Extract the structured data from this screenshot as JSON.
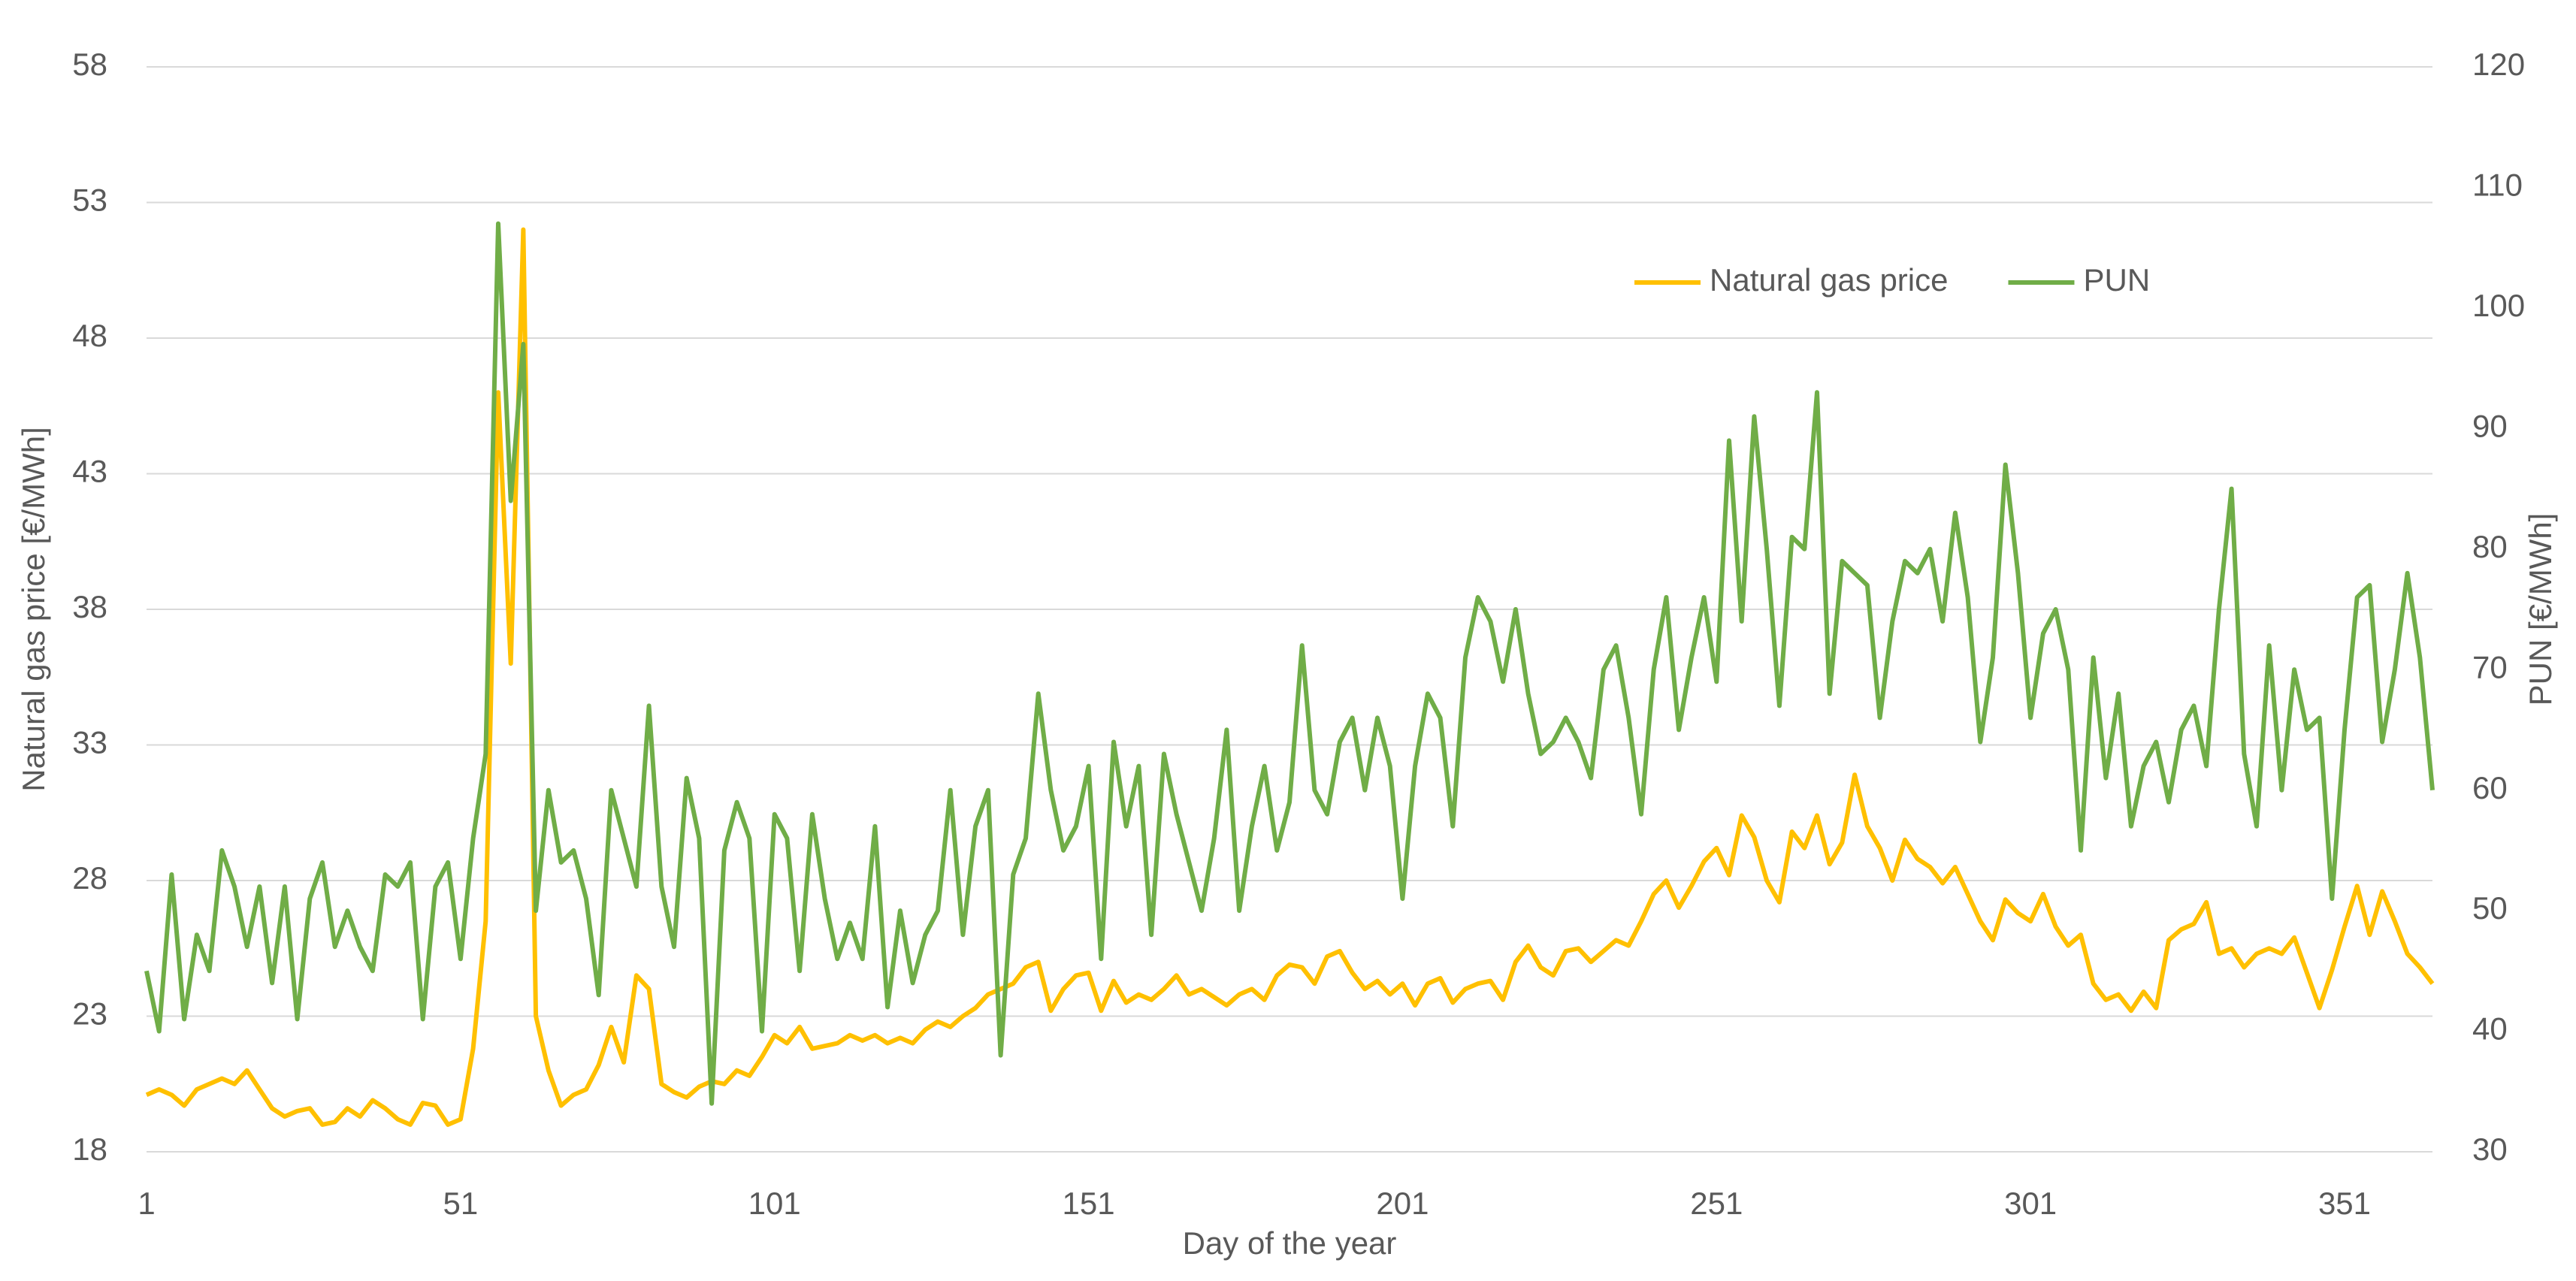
{
  "chart_data": {
    "type": "line",
    "x_label": "Day of the year",
    "y_label": "Natural gas price [€/MWh]",
    "y2_label": "PUN [€/MWh]",
    "xlim": [
      1,
      365
    ],
    "xticks": [
      1,
      51,
      101,
      151,
      201,
      251,
      301,
      351
    ],
    "ylim": [
      18,
      58
    ],
    "yticks": [
      18,
      23,
      28,
      33,
      38,
      43,
      48,
      53,
      58
    ],
    "y2lim": [
      30,
      120
    ],
    "y2ticks": [
      30,
      40,
      50,
      60,
      70,
      80,
      90,
      100,
      110,
      120
    ],
    "grid": true,
    "legend": "upper right",
    "x": [
      1,
      3,
      5,
      7,
      9,
      11,
      13,
      15,
      17,
      19,
      21,
      23,
      25,
      27,
      29,
      31,
      33,
      35,
      37,
      39,
      41,
      43,
      45,
      47,
      49,
      51,
      53,
      55,
      57,
      59,
      61,
      63,
      65,
      67,
      69,
      71,
      73,
      75,
      77,
      79,
      81,
      83,
      85,
      87,
      89,
      91,
      93,
      95,
      97,
      99,
      101,
      103,
      105,
      107,
      109,
      111,
      113,
      115,
      117,
      119,
      121,
      123,
      125,
      127,
      129,
      131,
      133,
      135,
      137,
      139,
      141,
      143,
      145,
      147,
      149,
      151,
      153,
      155,
      157,
      159,
      161,
      163,
      165,
      167,
      169,
      171,
      173,
      175,
      177,
      179,
      181,
      183,
      185,
      187,
      189,
      191,
      193,
      195,
      197,
      199,
      201,
      203,
      205,
      207,
      209,
      211,
      213,
      215,
      217,
      219,
      221,
      223,
      225,
      227,
      229,
      231,
      233,
      235,
      237,
      239,
      241,
      243,
      245,
      247,
      249,
      251,
      253,
      255,
      257,
      259,
      261,
      263,
      265,
      267,
      269,
      271,
      273,
      275,
      277,
      279,
      281,
      283,
      285,
      287,
      289,
      291,
      293,
      295,
      297,
      299,
      301,
      303,
      305,
      307,
      309,
      311,
      313,
      315,
      317,
      319,
      321,
      323,
      325,
      327,
      329,
      331,
      333,
      335,
      337,
      339,
      341,
      343,
      345,
      347,
      349,
      351,
      353,
      355,
      357,
      359,
      361,
      363,
      365
    ],
    "series": [
      {
        "name": "Natural gas price",
        "color": "#ffc000",
        "axis": "y",
        "values": [
          20.1,
          20.3,
          20.1,
          19.7,
          20.3,
          20.5,
          20.7,
          20.5,
          21.0,
          20.3,
          19.6,
          19.3,
          19.5,
          19.6,
          19.0,
          19.1,
          19.6,
          19.3,
          19.9,
          19.6,
          19.2,
          19.0,
          19.8,
          19.7,
          19.0,
          19.2,
          21.8,
          26.5,
          46,
          36,
          52,
          23,
          21,
          19.7,
          20.1,
          20.3,
          21.2,
          22.6,
          21.3,
          24.5,
          24.0,
          20.5,
          20.2,
          20.0,
          20.4,
          20.6,
          20.5,
          21.0,
          20.8,
          21.5,
          22.3,
          22.0,
          22.6,
          21.8,
          21.9,
          22.0,
          22.3,
          22.1,
          22.3,
          22.0,
          22.2,
          22.0,
          22.5,
          22.8,
          22.6,
          23.0,
          23.3,
          23.8,
          24.0,
          24.2,
          24.8,
          25.0,
          23.2,
          24.0,
          24.5,
          24.6,
          23.2,
          24.3,
          23.5,
          23.8,
          23.6,
          24.0,
          24.5,
          23.8,
          24.0,
          23.7,
          23.4,
          23.8,
          24.0,
          23.6,
          24.5,
          24.9,
          24.8,
          24.2,
          25.2,
          25.4,
          24.6,
          24.0,
          24.3,
          23.8,
          24.2,
          23.4,
          24.2,
          24.4,
          23.5,
          24.0,
          24.2,
          24.3,
          23.6,
          25.0,
          25.6,
          24.8,
          24.5,
          25.4,
          25.5,
          25.0,
          25.4,
          25.8,
          25.6,
          26.5,
          27.5,
          28.0,
          27.0,
          27.8,
          28.7,
          29.2,
          28.2,
          30.4,
          29.6,
          28.0,
          27.2,
          29.8,
          29.2,
          30.4,
          28.6,
          29.4,
          31.9,
          30.0,
          29.2,
          28.0,
          29.5,
          28.8,
          28.5,
          27.9,
          28.5,
          27.5,
          26.5,
          25.8,
          27.3,
          26.8,
          26.5,
          27.5,
          26.3,
          25.6,
          26.0,
          24.2,
          23.6,
          23.8,
          23.2,
          23.9,
          23.3,
          25.8,
          26.2,
          26.4,
          27.2,
          25.3,
          25.5,
          24.8,
          25.3,
          25.5,
          25.3,
          25.9,
          24.6,
          23.3,
          24.7,
          26.3,
          27.8,
          26.0,
          27.6,
          26.5,
          25.3,
          24.8,
          24.2
        ]
      },
      {
        "name": "PUN",
        "color": "#70ad47",
        "axis": "y2",
        "values": [
          45,
          40,
          53,
          41,
          48,
          45,
          55,
          52,
          47,
          52,
          44,
          52,
          41,
          51,
          54,
          47,
          50,
          47,
          45,
          53,
          52,
          54,
          41,
          52,
          54,
          46,
          56,
          63,
          107,
          84,
          97,
          50,
          60,
          54,
          55,
          51,
          43,
          60,
          56,
          52,
          67,
          52,
          47,
          61,
          56,
          34,
          55,
          59,
          56,
          40,
          58,
          56,
          45,
          58,
          51,
          46,
          49,
          46,
          57,
          42,
          50,
          44,
          48,
          50,
          60,
          48,
          57,
          60,
          38,
          53,
          56,
          68,
          60,
          55,
          57,
          62,
          46,
          64,
          57,
          62,
          48,
          63,
          58,
          54,
          50,
          56,
          65,
          50,
          57,
          62,
          55,
          59,
          72,
          60,
          58,
          64,
          66,
          60,
          66,
          62,
          51,
          62,
          68,
          66,
          57,
          71,
          76,
          74,
          69,
          75,
          68,
          63,
          64,
          66,
          64,
          61,
          70,
          72,
          66,
          58,
          70,
          76,
          65,
          71,
          76,
          69,
          89,
          74,
          91,
          80,
          67,
          81,
          80,
          93,
          68,
          79,
          78,
          77,
          66,
          74,
          79,
          78,
          80,
          74,
          83,
          76,
          64,
          71,
          87,
          78,
          66,
          73,
          75,
          70,
          55,
          71,
          61,
          68,
          57,
          62,
          64,
          59,
          65,
          67,
          62,
          75,
          85,
          63,
          57,
          72,
          60,
          70,
          65,
          66,
          51,
          65,
          76,
          77,
          64,
          70,
          78,
          71,
          60
        ]
      }
    ]
  }
}
